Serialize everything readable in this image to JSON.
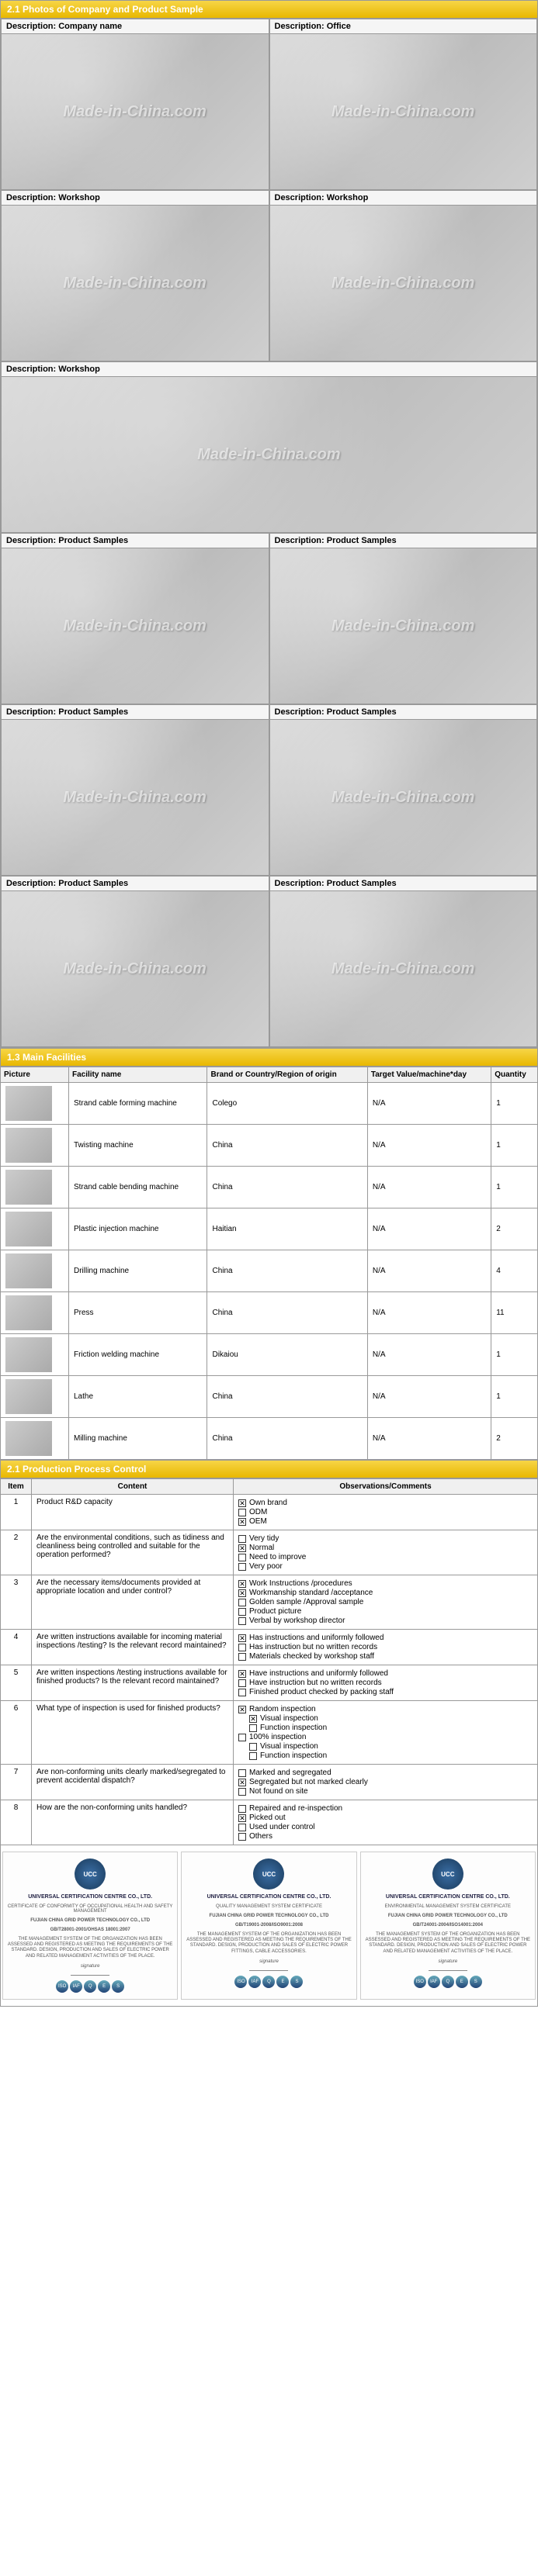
{
  "section_photos": {
    "title": "2.1 Photos of Company and Product Sample",
    "watermark": "Made-in-China.com",
    "rows": [
      [
        {
          "label": "Description: Company name"
        },
        {
          "label": "Description: Office"
        }
      ],
      [
        {
          "label": "Description: Workshop"
        },
        {
          "label": "Description: Workshop"
        }
      ],
      [
        {
          "label": "Description: Workshop"
        }
      ],
      [
        {
          "label": "Description: Product Samples"
        },
        {
          "label": "Description: Product Samples"
        }
      ],
      [
        {
          "label": "Description: Product Samples"
        },
        {
          "label": "Description: Product Samples"
        }
      ],
      [
        {
          "label": "Description: Product Samples"
        },
        {
          "label": "Description: Product Samples"
        }
      ]
    ]
  },
  "section_facilities": {
    "title": "1.3 Main Facilities",
    "columns": [
      "Picture",
      "Facility name",
      "Brand or Country/Region of origin",
      "Target Value/machine*day",
      "Quantity"
    ],
    "rows": [
      {
        "name": "Strand cable forming machine",
        "brand": "Colego",
        "target": "N/A",
        "qty": "1"
      },
      {
        "name": "Twisting machine",
        "brand": "China",
        "target": "N/A",
        "qty": "1"
      },
      {
        "name": "Strand cable bending machine",
        "brand": "China",
        "target": "N/A",
        "qty": "1"
      },
      {
        "name": "Plastic injection machine",
        "brand": "Haitian",
        "target": "N/A",
        "qty": "2"
      },
      {
        "name": "Drilling machine",
        "brand": "China",
        "target": "N/A",
        "qty": "4"
      },
      {
        "name": "Press",
        "brand": "China",
        "target": "N/A",
        "qty": "11"
      },
      {
        "name": "Friction welding machine",
        "brand": "Dikaiou",
        "target": "N/A",
        "qty": "1"
      },
      {
        "name": "Lathe",
        "brand": "China",
        "target": "N/A",
        "qty": "1"
      },
      {
        "name": "Milling machine",
        "brand": "China",
        "target": "N/A",
        "qty": "2"
      }
    ]
  },
  "section_process": {
    "title": "2.1 Production Process Control",
    "columns": [
      "Item",
      "Content",
      "Observations/Comments"
    ],
    "rows": [
      {
        "item": "1",
        "content": "Product R&D capacity",
        "obs": [
          {
            "c": true,
            "t": "Own brand"
          },
          {
            "c": false,
            "t": "ODM"
          },
          {
            "c": true,
            "t": "OEM"
          }
        ]
      },
      {
        "item": "2",
        "content": "Are the environmental conditions, such as tidiness and cleanliness being controlled and suitable for the operation performed?",
        "obs": [
          {
            "c": false,
            "t": "Very tidy"
          },
          {
            "c": true,
            "t": "Normal"
          },
          {
            "c": false,
            "t": "Need to improve"
          },
          {
            "c": false,
            "t": "Very poor"
          }
        ]
      },
      {
        "item": "3",
        "content": "Are the necessary items/documents provided at appropriate location and under control?",
        "obs": [
          {
            "c": true,
            "t": "Work Instructions /procedures"
          },
          {
            "c": true,
            "t": "Workmanship standard /acceptance"
          },
          {
            "c": false,
            "t": "Golden sample /Approval sample"
          },
          {
            "c": false,
            "t": "Product picture"
          },
          {
            "c": false,
            "t": "Verbal by workshop director"
          }
        ]
      },
      {
        "item": "4",
        "content": "Are written instructions available for incoming material inspections /testing? Is the relevant record maintained?",
        "obs": [
          {
            "c": true,
            "t": "Has instructions and uniformly followed"
          },
          {
            "c": false,
            "t": "Has instruction but no written records"
          },
          {
            "c": false,
            "t": "Materials checked by workshop staff"
          }
        ]
      },
      {
        "item": "5",
        "content": "Are written inspections /testing instructions available for finished products? Is the relevant record maintained?",
        "obs": [
          {
            "c": true,
            "t": "Have instructions and uniformly followed"
          },
          {
            "c": false,
            "t": "Have instruction but no written records"
          },
          {
            "c": false,
            "t": "Finished product checked by packing staff"
          }
        ]
      },
      {
        "item": "6",
        "content": "What type of inspection is used for finished products?",
        "obs": [
          {
            "c": true,
            "t": "Random inspection"
          },
          {
            "c": true,
            "t": "Visual inspection",
            "indent": 1
          },
          {
            "c": false,
            "t": "Function inspection",
            "indent": 1
          },
          {
            "c": false,
            "t": "100% inspection"
          },
          {
            "c": false,
            "t": "Visual inspection",
            "indent": 1
          },
          {
            "c": false,
            "t": "Function inspection",
            "indent": 1
          }
        ]
      },
      {
        "item": "7",
        "content": "Are non-conforming units clearly marked/segregated to prevent accidental dispatch?",
        "obs": [
          {
            "c": false,
            "t": "Marked and segregated"
          },
          {
            "c": true,
            "t": "Segregated but not marked clearly"
          },
          {
            "c": false,
            "t": "Not found on site"
          }
        ]
      },
      {
        "item": "8",
        "content": "How are the non-conforming units handled?",
        "obs": [
          {
            "c": false,
            "t": "Repaired and re-inspection"
          },
          {
            "c": true,
            "t": "Picked out"
          },
          {
            "c": false,
            "t": "Used under control"
          },
          {
            "c": false,
            "t": "Others"
          }
        ]
      }
    ]
  },
  "certs": [
    {
      "logo": "UCC",
      "title": "UNIVERSAL CERTIFICATION CENTRE CO., LTD.",
      "subtitle": "CERTIFICATE OF CONFORMITY OF OCCUPATIONAL HEALTH AND SAFETY MANAGEMENT",
      "org": "FUJIAN CHINA GRID POWER TECHNOLOGY CO., LTD",
      "std": "GB/T28001-2001/OHSAS 18001:2007",
      "body": "THE MANAGEMENT SYSTEM OF THE ORGANIZATION HAS BEEN ASSESSED AND REGISTERED AS MEETING THE REQUIREMENTS OF THE STANDARD. DESIGN, PRODUCTION AND SALES OF ELECTRIC POWER AND RELATED MANAGEMENT ACTIVITIES OF THE PLACE."
    },
    {
      "logo": "UCC",
      "title": "UNIVERSAL CERTIFICATION CENTRE CO., LTD.",
      "subtitle": "QUALITY MANAGEMENT SYSTEM CERTIFICATE",
      "org": "FUJIAN CHINA GRID POWER TECHNOLOGY CO., LTD",
      "std": "GB/T19001-2008/ISO9001:2008",
      "body": "THE MANAGEMENT SYSTEM OF THE ORGANIZATION HAS BEEN ASSESSED AND REGISTERED AS MEETING THE REQUIREMENTS OF THE STANDARD. DESIGN, PRODUCTION AND SALES OF ELECTRIC POWER FITTINGS, CABLE ACCESSORIES."
    },
    {
      "logo": "UCC",
      "title": "UNIVERSAL CERTIFICATION CENTRE CO., LTD.",
      "subtitle": "ENVIRONMENTAL MANAGEMENT SYSTEM CERTIFICATE",
      "org": "FUJIAN CHINA GRID POWER TECHNOLOGY CO., LTD",
      "std": "GB/T24001-2004/ISO14001:2004",
      "body": "THE MANAGEMENT SYSTEM OF THE ORGANIZATION HAS BEEN ASSESSED AND REGISTERED AS MEETING THE REQUIREMENTS OF THE STANDARD. DESIGN, PRODUCTION AND SALES OF ELECTRIC POWER AND RELATED MANAGEMENT ACTIVITIES OF THE PLACE."
    }
  ],
  "colors": {
    "header_bg_top": "#f7d547",
    "header_bg_bottom": "#e8b800",
    "border": "#999999"
  }
}
